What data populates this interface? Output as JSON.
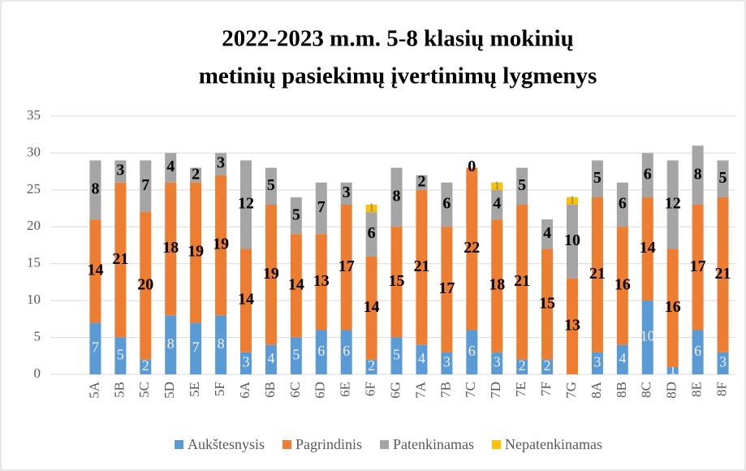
{
  "chart_data": {
    "type": "stacked_bar",
    "title": [
      "2022-2023 m.m. 5-8 klasių  mokinių",
      "metinių pasiekimų  įvertinimų  lygmenys"
    ],
    "categories": [
      "5A",
      "5B",
      "5C",
      "5D",
      "5E",
      "5F",
      "6A",
      "6B",
      "6C",
      "6D",
      "6E",
      "6F",
      "6G",
      "7A",
      "7B",
      "7C",
      "7D",
      "7E",
      "7F",
      "7G",
      "8A",
      "8B",
      "8C",
      "8D",
      "8E",
      "8F"
    ],
    "series": [
      {
        "name": "Aukštesnysis",
        "color": "#5b9bd5",
        "values": [
          7,
          5,
          2,
          8,
          7,
          8,
          3,
          4,
          5,
          6,
          6,
          2,
          5,
          4,
          3,
          6,
          3,
          2,
          2,
          0,
          3,
          4,
          10,
          1,
          6,
          3
        ]
      },
      {
        "name": "Pagrindinis",
        "color": "#ed7d31",
        "values": [
          14,
          21,
          20,
          18,
          19,
          19,
          14,
          19,
          14,
          13,
          17,
          14,
          15,
          21,
          17,
          22,
          18,
          21,
          15,
          13,
          21,
          16,
          14,
          16,
          17,
          21
        ]
      },
      {
        "name": "Patenkinamas",
        "color": "#a5a5a5",
        "values": [
          8,
          3,
          7,
          4,
          2,
          3,
          12,
          5,
          5,
          7,
          3,
          6,
          8,
          2,
          6,
          0,
          4,
          5,
          4,
          10,
          5,
          6,
          6,
          12,
          8,
          5
        ]
      },
      {
        "name": "Nepatenkinamas",
        "color": "#ffc000",
        "values": [
          null,
          null,
          null,
          null,
          null,
          null,
          null,
          null,
          null,
          null,
          null,
          1,
          null,
          null,
          null,
          null,
          1,
          null,
          null,
          1,
          null,
          null,
          null,
          null,
          null,
          null
        ]
      }
    ],
    "ylim": [
      0,
      35
    ],
    "yticks": [
      0,
      5,
      10,
      15,
      20,
      25,
      30,
      35
    ],
    "grid": true,
    "legend": "bottom"
  }
}
